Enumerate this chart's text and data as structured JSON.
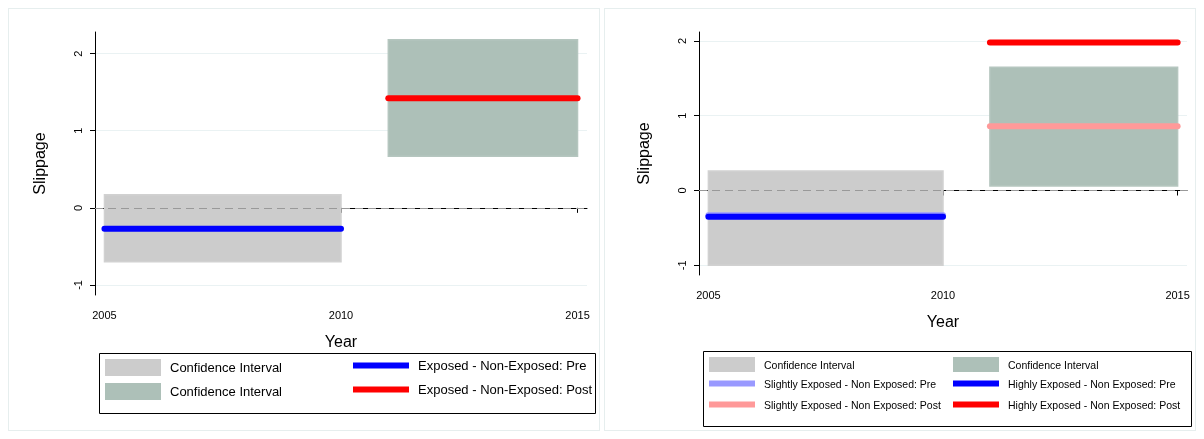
{
  "chart_data": [
    {
      "type": "line",
      "xlabel": "Year",
      "ylabel": "Slippage",
      "xlim": [
        2004.8,
        2015.2
      ],
      "xticks": [
        2005,
        2010,
        2015
      ],
      "ylim": [
        -1.13,
        2.28
      ],
      "yticks": [
        -1,
        0,
        1,
        2
      ],
      "grid": "y",
      "legend": "bottom",
      "line_style": "solid",
      "marker": "none",
      "ref_lines": [
        {
          "axis": "y",
          "value": 0,
          "color": "#999999",
          "line_style": "dashed"
        }
      ],
      "series": [
        {
          "type": "area",
          "name": "Confidence Interval",
          "color": "#cccccc"
        },
        {
          "name": "Exposed - Non-Exposed: Pre",
          "color": "#0000ff",
          "x": [
            2005,
            2010
          ],
          "values": [
            -0.27,
            -0.27
          ],
          "lower": [
            -0.7,
            -0.7
          ],
          "upper": [
            0.17,
            0.17
          ]
        },
        {
          "type": "area",
          "name": "Confidence Interval",
          "color": "#adc0b8"
        },
        {
          "name": "Exposed - Non-Exposed: Post",
          "color": "#ff0000",
          "x": [
            2011,
            2015
          ],
          "values": [
            1.42,
            1.42
          ],
          "lower": [
            0.67,
            0.67
          ],
          "upper": [
            2.18,
            2.18
          ]
        }
      ]
    },
    {
      "type": "line",
      "xlabel": "Year",
      "ylabel": "Slippage",
      "xlim": [
        2004.8,
        2015.2
      ],
      "xticks": [
        2005,
        2010,
        2015
      ],
      "ylim": [
        -1.13,
        2.12
      ],
      "yticks": [
        -1,
        0,
        1,
        2
      ],
      "grid": "y",
      "legend": "bottom",
      "line_style": "solid",
      "marker": "none",
      "ref_lines": [
        {
          "axis": "y",
          "value": 0,
          "color": "#999999",
          "line_style": "dashed"
        }
      ],
      "series": [
        {
          "type": "area",
          "name": "Confidence Interval",
          "color": "#cccccc"
        },
        {
          "type": "area",
          "name": "Confidence Interval",
          "color": "#adc0b8"
        },
        {
          "name": "Slightly Exposed - Non Exposed: Pre",
          "color": "#9999ff",
          "x": [
            2005,
            2010
          ],
          "values": [
            -0.33,
            -0.33
          ],
          "lower": [
            -1.0,
            -1.0
          ],
          "upper": [
            0.26,
            0.26
          ]
        },
        {
          "name": "Highly Exposed - Non Exposed: Pre",
          "color": "#0000ff",
          "x": [
            2005,
            2010
          ],
          "values": [
            -0.35,
            -0.35
          ]
        },
        {
          "name": "Slightly Exposed - Non Exposed: Post",
          "color": "#ff9999",
          "x": [
            2011,
            2015
          ],
          "values": [
            0.86,
            0.86
          ],
          "lower": [
            0.06,
            0.06
          ],
          "upper": [
            1.65,
            1.65
          ]
        },
        {
          "name": "Highly Exposed - Non Exposed: Post",
          "color": "#ff0000",
          "x": [
            2011,
            2015
          ],
          "values": [
            1.98,
            1.98
          ]
        }
      ]
    }
  ]
}
